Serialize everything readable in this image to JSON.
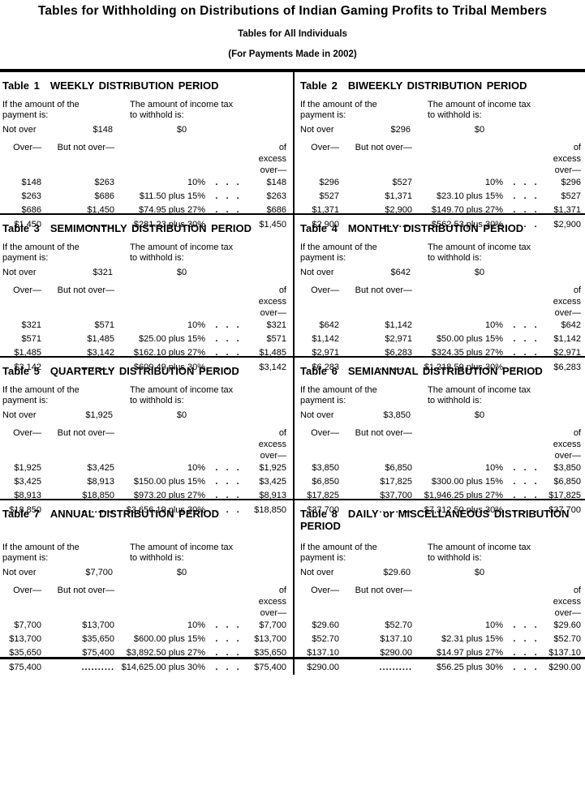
{
  "page": {
    "title": "Tables for Withholding on Distributions of Indian Gaming Profits to Tribal Members",
    "subtitle": "Tables for All Individuals",
    "note": "(For Payments Made in 2002)"
  },
  "colors": {
    "text": "#000000",
    "background": "#ffffff",
    "rule": "#000000"
  },
  "labels": {
    "payment_line1": "If the amount of the",
    "payment_line2": "payment is:",
    "withhold_line1": "The amount of income tax",
    "withhold_line2": "to withhold is:",
    "not_over": "Not over",
    "over": "Over—",
    "but_not_over": "But not over—",
    "of_excess_over": "of excess over—",
    "dots_sep": ". . .",
    "leader": ".........."
  },
  "tables": [
    {
      "id": "Table 1",
      "title": "WEEKLY DISTRIBUTION PERIOD",
      "not_over_amount": "$148",
      "not_over_tax": "$0",
      "rows": [
        {
          "over": "$148",
          "but_not_over": "$263",
          "tax": "10%",
          "excess_over": "$148"
        },
        {
          "over": "$263",
          "but_not_over": "$686",
          "tax": "$11.50 plus 15%",
          "excess_over": "$263"
        },
        {
          "over": "$686",
          "but_not_over": "$1,450",
          "tax": "$74.95 plus 27%",
          "excess_over": "$686"
        },
        {
          "over": "$1,450",
          "but_not_over": "..........",
          "tax": "$281.23 plus 30%",
          "excess_over": "$1,450"
        }
      ]
    },
    {
      "id": "Table 2",
      "title": "BIWEEKLY DISTRIBUTION PERIOD",
      "not_over_amount": "$296",
      "not_over_tax": "$0",
      "rows": [
        {
          "over": "$296",
          "but_not_over": "$527",
          "tax": "10%",
          "excess_over": "$296"
        },
        {
          "over": "$527",
          "but_not_over": "$1,371",
          "tax": "$23.10 plus 15%",
          "excess_over": "$527"
        },
        {
          "over": "$1,371",
          "but_not_over": "$2,900",
          "tax": "$149.70 plus 27%",
          "excess_over": "$1,371"
        },
        {
          "over": "$2,900",
          "but_not_over": "..........",
          "tax": "$562.53 plus 30%",
          "excess_over": "$2,900"
        }
      ]
    },
    {
      "id": "Table 3",
      "title": "SEMIMONTHLY DISTRIBUTION PERIOD",
      "not_over_amount": "$321",
      "not_over_tax": "$0",
      "rows": [
        {
          "over": "$321",
          "but_not_over": "$571",
          "tax": "10%",
          "excess_over": "$321"
        },
        {
          "over": "$571",
          "but_not_over": "$1,485",
          "tax": "$25.00 plus 15%",
          "excess_over": "$571"
        },
        {
          "over": "$1,485",
          "but_not_over": "$3,142",
          "tax": "$162.10 plus 27%",
          "excess_over": "$1,485"
        },
        {
          "over": "$3,142",
          "but_not_over": "..........",
          "tax": "$609.49 plus 30%",
          "excess_over": "$3,142"
        }
      ]
    },
    {
      "id": "Table 4",
      "title": "MONTHLY DISTRIBUTION PERIOD",
      "not_over_amount": "$642",
      "not_over_tax": "$0",
      "rows": [
        {
          "over": "$642",
          "but_not_over": "$1,142",
          "tax": "10%",
          "excess_over": "$642"
        },
        {
          "over": "$1,142",
          "but_not_over": "$2,971",
          "tax": "$50.00 plus 15%",
          "excess_over": "$1,142"
        },
        {
          "over": "$2,971",
          "but_not_over": "$6,283",
          "tax": "$324.35 plus 27%",
          "excess_over": "$2,971"
        },
        {
          "over": "$6,283",
          "but_not_over": "..........",
          "tax": "$1,218.59 plus 30%",
          "excess_over": "$6,283"
        }
      ]
    },
    {
      "id": "Table 5",
      "title": "QUARTERLY DISTRIBUTION PERIOD",
      "not_over_amount": "$1,925",
      "not_over_tax": "$0",
      "rows": [
        {
          "over": "$1,925",
          "but_not_over": "$3,425",
          "tax": "10%",
          "excess_over": "$1,925"
        },
        {
          "over": "$3,425",
          "but_not_over": "$8,913",
          "tax": "$150.00 plus 15%",
          "excess_over": "$3,425"
        },
        {
          "over": "$8,913",
          "but_not_over": "$18,850",
          "tax": "$973.20 plus 27%",
          "excess_over": "$8,913"
        },
        {
          "over": "$18,850",
          "but_not_over": "..........",
          "tax": "$3,656.19 plus 30%",
          "excess_over": "$18,850"
        }
      ]
    },
    {
      "id": "Table 6",
      "title": "SEMIANNUAL DISTRIBUTION PERIOD",
      "not_over_amount": "$3,850",
      "not_over_tax": "$0",
      "rows": [
        {
          "over": "$3,850",
          "but_not_over": "$6,850",
          "tax": "10%",
          "excess_over": "$3,850"
        },
        {
          "over": "$6,850",
          "but_not_over": "$17,825",
          "tax": "$300.00 plus 15%",
          "excess_over": "$6,850"
        },
        {
          "over": "$17,825",
          "but_not_over": "$37,700",
          "tax": "$1,946.25 plus 27%",
          "excess_over": "$17,825"
        },
        {
          "over": "$37,700",
          "but_not_over": "..........",
          "tax": "$7,312.50 plus 30%",
          "excess_over": "$37,700"
        }
      ]
    },
    {
      "id": "Table 7",
      "title": "ANNUAL DISTRIBUTION PERIOD",
      "not_over_amount": "$7,700",
      "not_over_tax": "$0",
      "rows": [
        {
          "over": "$7,700",
          "but_not_over": "$13,700",
          "tax": "10%",
          "excess_over": "$7,700"
        },
        {
          "over": "$13,700",
          "but_not_over": "$35,650",
          "tax": "$600.00 plus 15%",
          "excess_over": "$13,700"
        },
        {
          "over": "$35,650",
          "but_not_over": "$75,400",
          "tax": "$3,892.50 plus 27%",
          "excess_over": "$35,650"
        },
        {
          "over": "$75,400",
          "but_not_over": "..........",
          "tax": "$14,625.00 plus 30%",
          "excess_over": "$75,400"
        }
      ]
    },
    {
      "id": "Table 8",
      "title": "DAILY or MISCELLANEOUS DISTRIBUTION PERIOD",
      "not_over_amount": "$29.60",
      "not_over_tax": "$0",
      "rows": [
        {
          "over": "$29.60",
          "but_not_over": "$52.70",
          "tax": "10%",
          "excess_over": "$29.60"
        },
        {
          "over": "$52.70",
          "but_not_over": "$137.10",
          "tax": "$2.31 plus 15%",
          "excess_over": "$52.70"
        },
        {
          "over": "$137.10",
          "but_not_over": "$290.00",
          "tax": "$14.97 plus 27%",
          "excess_over": "$137.10"
        },
        {
          "over": "$290.00",
          "but_not_over": "..........",
          "tax": "$56.25 plus 30%",
          "excess_over": "$290.00"
        }
      ]
    }
  ]
}
